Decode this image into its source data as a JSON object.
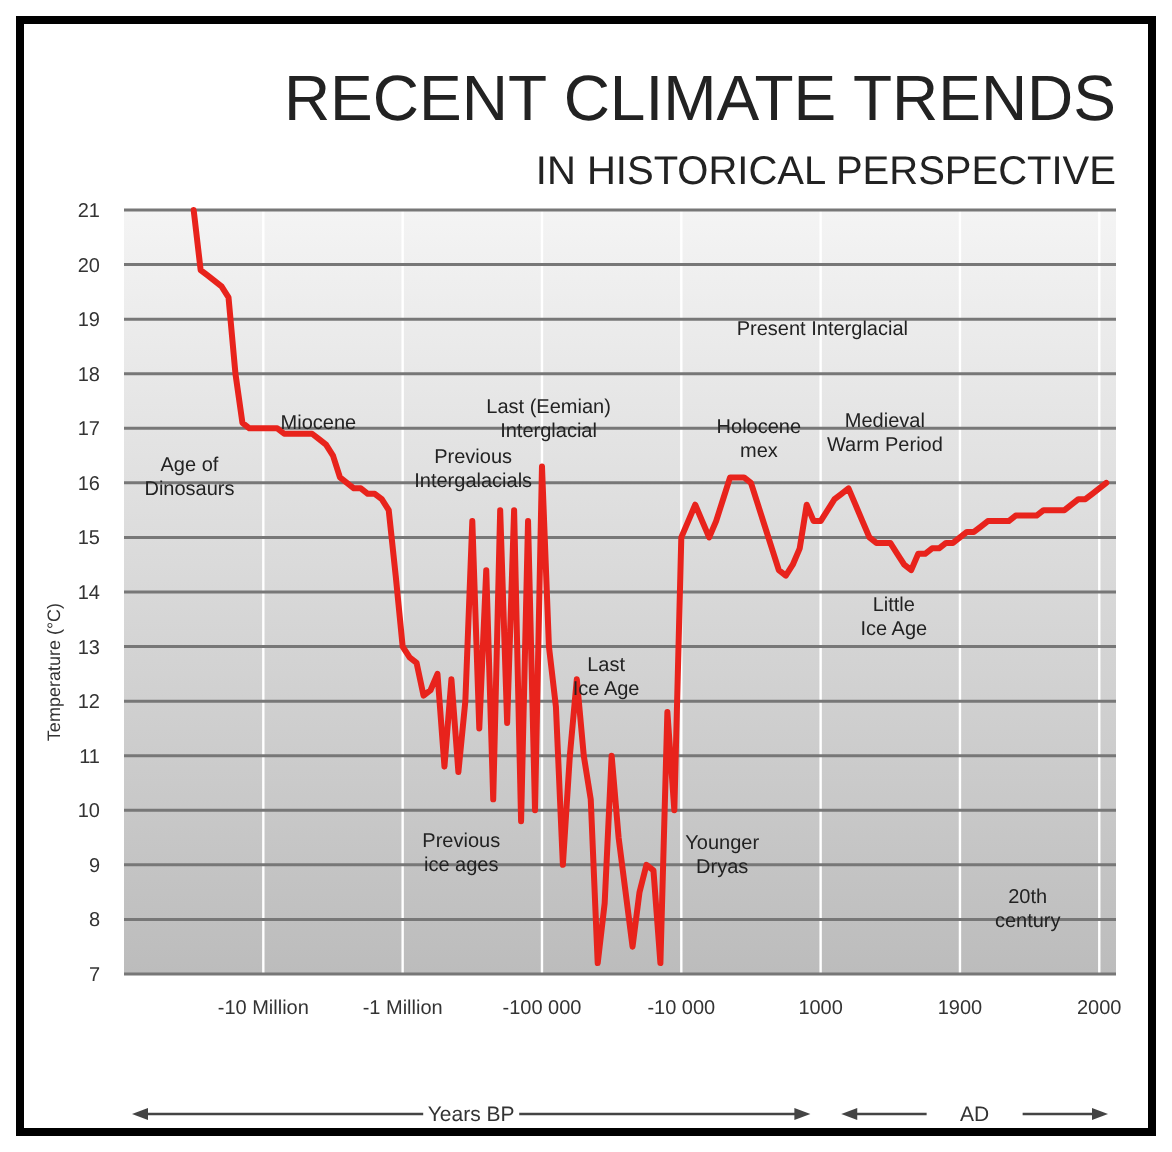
{
  "chart_data": {
    "type": "line",
    "title": "RECENT CLIMATE TRENDS",
    "subtitle": "IN HISTORICAL PERSPECTIVE",
    "ylabel": "Temperature (°C)",
    "categories": [
      null,
      null,
      null,
      null,
      null,
      null,
      null,
      null,
      null,
      null,
      null,
      null,
      null,
      null,
      null,
      null,
      null,
      null,
      null,
      null,
      "-10 Million",
      null,
      null,
      null,
      null,
      null,
      null,
      null,
      null,
      null,
      null,
      null,
      null,
      null,
      null,
      null,
      null,
      null,
      null,
      null,
      "-1 Million",
      null,
      null,
      null,
      null,
      null,
      null,
      null,
      null,
      null,
      null,
      null,
      null,
      null,
      null,
      null,
      null,
      null,
      null,
      null,
      "-100 000",
      null,
      null,
      null,
      null,
      null,
      null,
      null,
      null,
      null,
      null,
      null,
      null,
      null,
      null,
      null,
      null,
      null,
      null,
      null,
      "-10 000",
      null,
      null,
      null,
      null,
      null,
      null,
      null,
      null,
      null,
      null,
      null,
      null,
      null,
      null,
      null,
      null,
      null,
      null,
      null,
      "1000",
      null,
      null,
      null,
      null,
      null,
      null,
      null,
      null,
      null,
      null,
      null,
      null,
      null,
      null,
      null,
      null,
      null,
      null,
      null,
      "1900",
      null,
      null,
      null,
      null,
      null,
      null,
      null,
      null,
      null,
      null,
      null,
      null,
      null,
      null,
      null,
      null,
      null,
      null,
      null,
      "2000",
      null
    ],
    "ylim": [
      7,
      21
    ],
    "yticks": [
      7,
      8,
      9,
      10,
      11,
      12,
      13,
      14,
      15,
      16,
      17,
      18,
      19,
      20,
      21
    ],
    "grid": true,
    "marker": "none",
    "line_style": "solid",
    "series": [
      {
        "color": "#e8231c",
        "values": [
          null,
          null,
          null,
          null,
          null,
          null,
          null,
          null,
          null,
          null,
          21,
          19.9,
          19.8,
          19.7,
          19.6,
          19.4,
          18.0,
          17.1,
          17.0,
          17.0,
          17.0,
          17.0,
          17.0,
          16.9,
          16.9,
          16.9,
          16.9,
          16.9,
          16.8,
          16.7,
          16.5,
          16.1,
          16.0,
          15.9,
          15.9,
          15.8,
          15.8,
          15.7,
          15.5,
          14.3,
          13.0,
          12.8,
          12.7,
          12.1,
          12.2,
          12.5,
          10.8,
          12.4,
          10.7,
          12.0,
          15.3,
          11.5,
          14.4,
          10.2,
          15.5,
          11.6,
          15.5,
          9.8,
          15.3,
          10.0,
          16.3,
          13.0,
          11.9,
          9.0,
          11.0,
          12.4,
          11.0,
          10.2,
          7.2,
          8.3,
          11.0,
          9.5,
          8.5,
          7.5,
          8.5,
          9.0,
          8.9,
          7.2,
          11.8,
          10.0,
          15.0,
          15.3,
          15.6,
          15.3,
          15.0,
          15.3,
          15.7,
          16.1,
          16.1,
          16.1,
          16.0,
          15.6,
          15.2,
          14.8,
          14.4,
          14.3,
          14.5,
          14.8,
          15.6,
          15.3,
          15.3,
          15.5,
          15.7,
          15.8,
          15.9,
          15.6,
          15.3,
          15.0,
          14.9,
          14.9,
          14.9,
          14.7,
          14.5,
          14.4,
          14.7,
          14.7,
          14.8,
          14.8,
          14.9,
          14.9,
          15.0,
          15.1,
          15.1,
          15.2,
          15.3,
          15.3,
          15.3,
          15.3,
          15.4,
          15.4,
          15.4,
          15.4,
          15.5,
          15.5,
          15.5,
          15.5,
          15.6,
          15.7,
          15.7,
          15.8,
          15.9,
          16.0
        ]
      }
    ],
    "annotations": [
      "Age of\nDinosaurs",
      "Miocene",
      "Previous\nIntergalacials",
      "Last (Eemian)\nInterglacial",
      "Last\nIce Age",
      "Previous\nice ages",
      "Younger\nDryas",
      "Holocene\nmex",
      "Medieval\nWarm Period",
      "Little\nIce Age",
      "Present Interglacial",
      "20th\ncentury",
      "Years BP",
      "AD"
    ]
  }
}
